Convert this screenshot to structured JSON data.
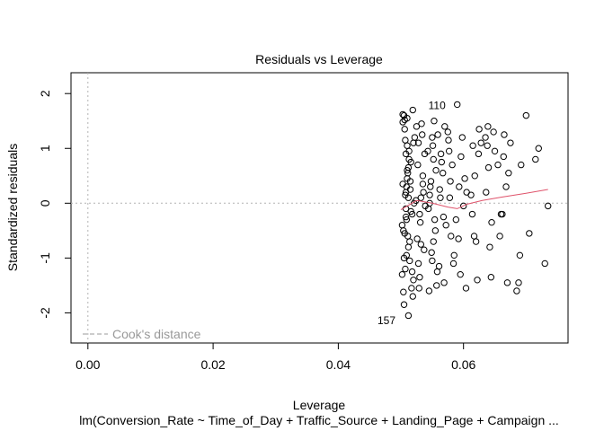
{
  "chart_data": {
    "type": "scatter",
    "title": "Residuals vs Leverage",
    "xlabel": "Leverage",
    "ylabel": "Standardized residuals",
    "subtitle": "lm(Conversion_Rate ~ Time_of_Day + Traffic_Source + Landing_Page + Campaign ...",
    "xlim": [
      -0.0027,
      0.0767
    ],
    "ylim": [
      -2.55,
      2.38
    ],
    "x_ticks": [
      0.0,
      0.02,
      0.04,
      0.06
    ],
    "x_tick_labels": [
      "0.00",
      "0.02",
      "0.04",
      "0.06"
    ],
    "y_ticks": [
      -2,
      -1,
      0,
      1,
      2
    ],
    "y_tick_labels": [
      "-2",
      "-1",
      "0",
      "1",
      "2"
    ],
    "legend": {
      "label": "Cook's distance",
      "position": "bottom-left"
    },
    "point_labels": [
      {
        "text": "110",
        "x": 0.058,
        "y": 1.78
      },
      {
        "text": "157",
        "x": 0.05,
        "y": -2.14
      }
    ],
    "smoother": {
      "color": "#DF536B",
      "x": [
        0.05,
        0.0525,
        0.055,
        0.0575,
        0.059,
        0.0605,
        0.063,
        0.066,
        0.07,
        0.0735
      ],
      "y": [
        -0.12,
        0.05,
        0.0,
        -0.07,
        -0.1,
        -0.02,
        0.05,
        0.11,
        0.18,
        0.25
      ]
    },
    "points": {
      "x": [
        0.0505,
        0.0503,
        0.0507,
        0.051,
        0.0508,
        0.0502,
        0.0515,
        0.0512,
        0.052,
        0.0518,
        0.0509,
        0.0522,
        0.0504,
        0.0512,
        0.0506,
        0.051,
        0.0514,
        0.0508,
        0.0502,
        0.0519,
        0.0507,
        0.0517,
        0.0511,
        0.0505,
        0.0516,
        0.0513,
        0.0509,
        0.0521,
        0.0506,
        0.0514,
        0.0508,
        0.0503,
        0.051,
        0.052,
        0.0512,
        0.0505,
        0.0516,
        0.0511,
        0.0507,
        0.0518,
        0.0504,
        0.0513,
        0.0509,
        0.0515,
        0.0506,
        0.0519,
        0.051,
        0.0512,
        0.0503,
        0.0508,
        0.0525,
        0.053,
        0.0535,
        0.0528,
        0.0532,
        0.0538,
        0.0526,
        0.0534,
        0.0529,
        0.0536,
        0.0531,
        0.0527,
        0.0539,
        0.0533,
        0.0537,
        0.0524,
        0.053,
        0.0535,
        0.0528,
        0.0532,
        0.0545,
        0.055,
        0.0548,
        0.0555,
        0.0552,
        0.0558,
        0.0546,
        0.0553,
        0.0549,
        0.0556,
        0.0544,
        0.0551,
        0.0557,
        0.0547,
        0.0554,
        0.0543,
        0.0559,
        0.055,
        0.0546,
        0.0552,
        0.0563,
        0.0568,
        0.0565,
        0.057,
        0.0561,
        0.0567,
        0.0572,
        0.0564,
        0.0569,
        0.0562,
        0.0575,
        0.058,
        0.0578,
        0.0585,
        0.0582,
        0.0576,
        0.0588,
        0.0579,
        0.0584,
        0.0577,
        0.0592,
        0.0598,
        0.0605,
        0.0595,
        0.0602,
        0.059,
        0.06,
        0.0596,
        0.0604,
        0.0593,
        0.0615,
        0.062,
        0.0618,
        0.0625,
        0.0622,
        0.0612,
        0.0628,
        0.0617,
        0.0624,
        0.0614,
        0.0635,
        0.064,
        0.0645,
        0.0638,
        0.0642,
        0.0648,
        0.0636,
        0.0644,
        0.065,
        0.0639,
        0.0655,
        0.066,
        0.0662,
        0.0665,
        0.0668,
        0.0672,
        0.0658,
        0.0664,
        0.0675,
        0.067,
        0.0685,
        0.069,
        0.07,
        0.0688,
        0.0715,
        0.072,
        0.073,
        0.0735,
        0.0692,
        0.0705
      ],
      "y": [
        1.6,
        1.48,
        -1.2,
        1.55,
        0.9,
        -1.3,
        0.4,
        -0.8,
        1.1,
        -0.2,
        0.3,
        1.2,
        -1.62,
        0.65,
        -0.55,
        1.05,
        -1.05,
        0.2,
        -0.4,
        1.7,
        0.15,
        -1.55,
        0.55,
        -1.85,
        -0.15,
        0.8,
        -0.95,
        0.0,
        1.35,
        -0.7,
        -0.25,
        1.62,
        0.45,
        -1.4,
        0.1,
        -1.0,
        0.75,
        -0.6,
        1.15,
        -1.25,
        -0.5,
        0.95,
        -0.3,
        0.25,
        1.52,
        -1.7,
        0.6,
        -2.05,
        0.35,
        -0.1,
        1.4,
        -0.2,
        0.5,
        -1.1,
        0.1,
        0.9,
        -0.65,
        1.25,
        -1.55,
        0.2,
        -0.35,
        0.7,
        -0.05,
        1.45,
        -0.85,
        0.05,
        -1.35,
        0.35,
        1.1,
        -0.75,
        -1.6,
        1.2,
        0.4,
        -0.5,
        0.8,
        -1.25,
        0.15,
        1.5,
        -0.9,
        0.6,
        -0.1,
        1.05,
        -1.5,
        0.3,
        -0.3,
        0.95,
        1.25,
        -1.05,
        0.0,
        -0.7,
        0.1,
        -0.25,
        0.75,
        1.4,
        -1.15,
        0.55,
        -0.4,
        0.9,
        -1.45,
        0.25,
        1.3,
        -0.6,
        0.1,
        -0.95,
        0.7,
        1.15,
        -0.3,
        0.4,
        -1.1,
        0.95,
        -0.65,
        1.2,
        0.2,
        -1.3,
        0.45,
        1.8,
        -0.05,
        0.85,
        -1.55,
        0.3,
        1.05,
        -0.7,
        0.5,
        1.35,
        -1.4,
        0.15,
        1.1,
        -0.6,
        0.9,
        -0.2,
        1.2,
        0.65,
        -0.35,
        1.05,
        -0.8,
        1.3,
        0.2,
        -1.35,
        0.95,
        1.4,
        0.7,
        -0.2,
        -0.2,
        1.25,
        0.3,
        0.55,
        -0.6,
        0.85,
        1.1,
        -1.45,
        -1.6,
        -0.95,
        1.6,
        -1.45,
        0.8,
        1.0,
        -1.1,
        -0.05,
        0.7,
        -0.55
      ]
    }
  }
}
